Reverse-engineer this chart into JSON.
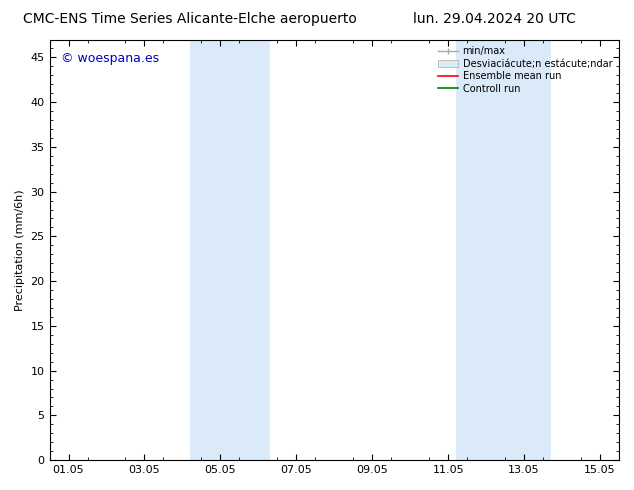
{
  "title_left": "CMC-ENS Time Series Alicante-Elche aeropuerto",
  "title_right": "lun. 29.04.2024 20 UTC",
  "ylabel": "Precipitation (mm/6h)",
  "watermark": "© woespana.es",
  "watermark_color": "#0000cc",
  "xlim_start": 0.0,
  "xlim_end": 15.0,
  "ylim_min": 0,
  "ylim_max": 47,
  "yticks": [
    0,
    5,
    10,
    15,
    20,
    25,
    30,
    35,
    40,
    45
  ],
  "xtick_labels": [
    "01.05",
    "03.05",
    "05.05",
    "07.05",
    "09.05",
    "11.05",
    "13.05",
    "15.05"
  ],
  "xtick_positions": [
    0.5,
    2.5,
    4.5,
    6.5,
    8.5,
    10.5,
    12.5,
    14.5
  ],
  "shaded_regions": [
    {
      "x_start": 3.7,
      "x_end": 5.8,
      "color": "#daeaf8"
    },
    {
      "x_start": 10.7,
      "x_end": 13.2,
      "color": "#daeaf8"
    }
  ],
  "bg_color": "#ffffff",
  "title_fontsize": 10,
  "axis_fontsize": 8,
  "watermark_fontsize": 9
}
